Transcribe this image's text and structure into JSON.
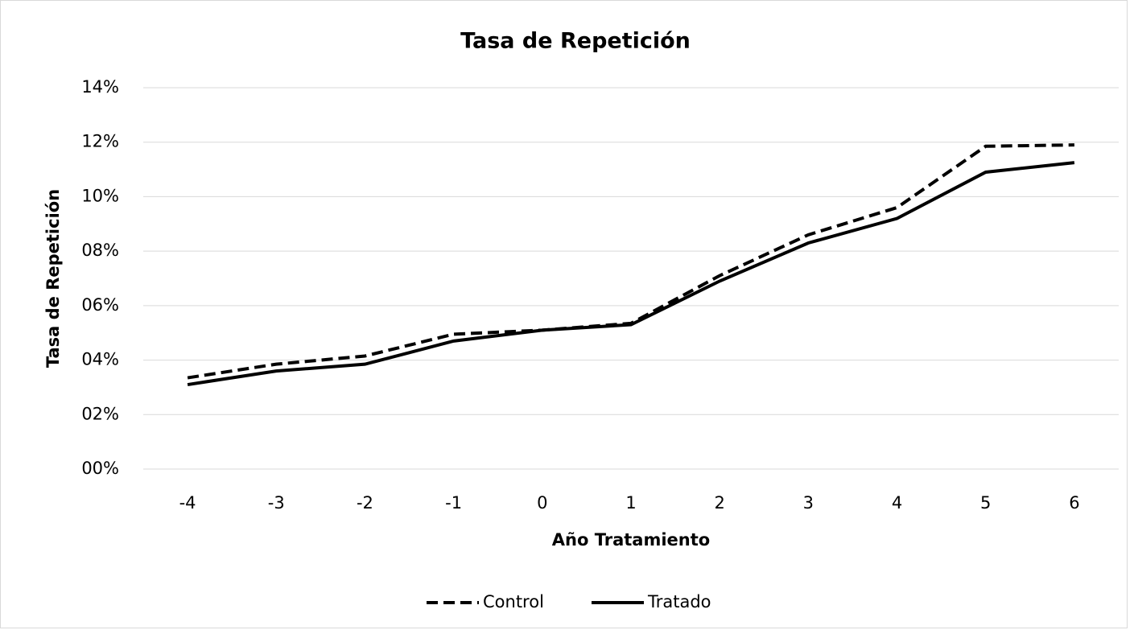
{
  "chart_data": {
    "type": "line",
    "title": "Tasa de Repetición",
    "x_label": "Año Tratamiento",
    "y_label": "Tasa de Repetición",
    "categories": [
      "-4",
      "-3",
      "-2",
      "-1",
      "0",
      "1",
      "2",
      "3",
      "4",
      "5",
      "6"
    ],
    "series": [
      {
        "name": "Control",
        "color": "#000000",
        "line_style": "dashed",
        "values": [
          3.35,
          3.85,
          4.15,
          4.95,
          5.1,
          5.35,
          7.1,
          8.6,
          9.6,
          11.85,
          11.9
        ]
      },
      {
        "name": "Tratado",
        "color": "#000000",
        "line_style": "solid",
        "values": [
          3.1,
          3.6,
          3.85,
          4.7,
          5.1,
          5.3,
          6.9,
          8.3,
          9.2,
          10.9,
          11.25
        ]
      }
    ],
    "ylim": [
      0,
      14
    ],
    "yticks": [
      {
        "value": 0,
        "label": "00%"
      },
      {
        "value": 2,
        "label": "02%"
      },
      {
        "value": 4,
        "label": "04%"
      },
      {
        "value": 6,
        "label": "06%"
      },
      {
        "value": 8,
        "label": "08%"
      },
      {
        "value": 10,
        "label": "10%"
      },
      {
        "value": 12,
        "label": "12%"
      },
      {
        "value": 14,
        "label": "14%"
      }
    ],
    "grid": true,
    "legend": "bottom"
  }
}
